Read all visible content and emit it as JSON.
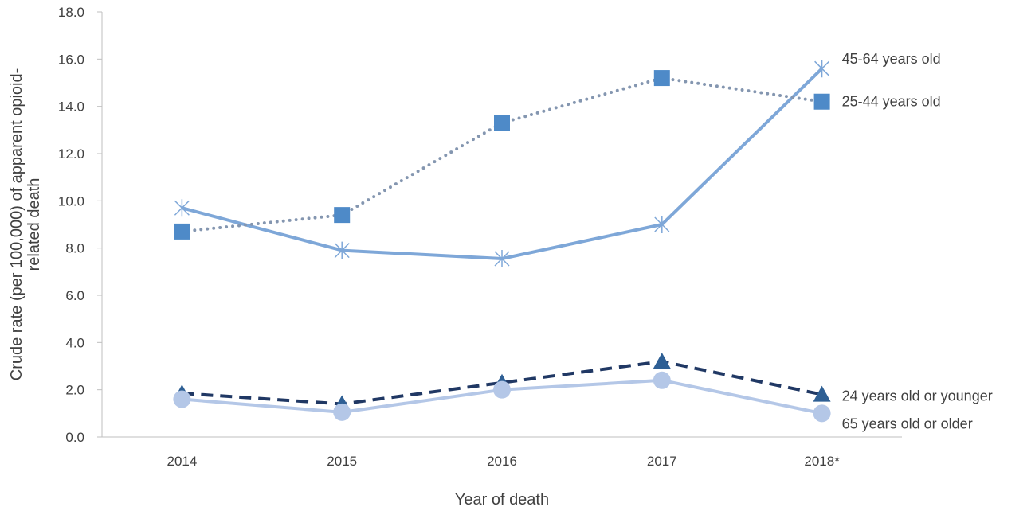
{
  "chart_data": {
    "type": "line",
    "title": "",
    "xlabel": "Year of death",
    "ylabel": "Crude rate (per 100,000) of apparent opioid-related death",
    "ylabel_lines": [
      "Crude rate (per 100,000) of apparent opioid-",
      "related death"
    ],
    "categories": [
      "2014",
      "2015",
      "2016",
      "2017",
      "2018*"
    ],
    "ylim": [
      0,
      18
    ],
    "yticks": [
      "0.0",
      "2.0",
      "4.0",
      "6.0",
      "8.0",
      "10.0",
      "12.0",
      "14.0",
      "16.0",
      "18.0"
    ],
    "grid": false,
    "legend": "inline labels at right end of each line",
    "series": [
      {
        "name": "45-64 years old",
        "values": [
          9.7,
          7.9,
          7.55,
          9.0,
          15.6
        ],
        "color": "#7ea7d8",
        "line": "solid",
        "marker": "asterisk"
      },
      {
        "name": "25-44 years old",
        "values": [
          8.7,
          9.4,
          13.3,
          15.2,
          14.2
        ],
        "color": "#8496b0",
        "marker_color": "#4e8ac8",
        "line": "dotted",
        "marker": "square"
      },
      {
        "name": "24 years old or younger",
        "values": [
          1.85,
          1.4,
          2.3,
          3.2,
          1.8
        ],
        "color": "#203864",
        "marker_color": "#2e5f94",
        "line": "dashed",
        "marker": "triangle"
      },
      {
        "name": "65 years old or older",
        "values": [
          1.6,
          1.05,
          2.0,
          2.4,
          1.0
        ],
        "color": "#b4c7e7",
        "line": "solid",
        "marker": "circle"
      }
    ]
  }
}
